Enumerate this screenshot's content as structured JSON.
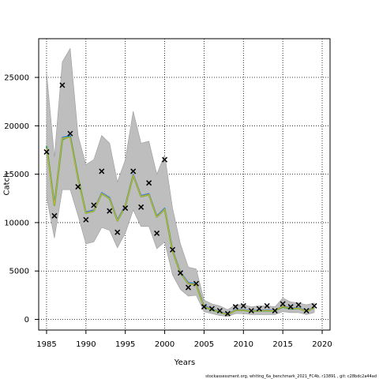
{
  "chart_data": {
    "type": "line",
    "xlabel": "Years",
    "ylabel": "Catch",
    "xlim": [
      1984,
      2021
    ],
    "ylim": [
      -1100,
      29000
    ],
    "x_ticks": [
      1985,
      1990,
      1995,
      2000,
      2005,
      2010,
      2015,
      2020
    ],
    "y_ticks": [
      0,
      5000,
      10000,
      15000,
      20000,
      25000
    ],
    "grid": true,
    "grid_style": "dotted",
    "years": [
      1985,
      1986,
      1987,
      1988,
      1989,
      1990,
      1991,
      1992,
      1993,
      1994,
      1995,
      1996,
      1997,
      1998,
      1999,
      2000,
      2001,
      2002,
      2003,
      2004,
      2005,
      2006,
      2007,
      2008,
      2009,
      2010,
      2011,
      2012,
      2013,
      2014,
      2015,
      2016,
      2017,
      2018,
      2019
    ],
    "observed": [
      17300,
      10700,
      24200,
      19200,
      13700,
      10300,
      11800,
      15300,
      11200,
      9000,
      11500,
      15300,
      11600,
      14100,
      8900,
      16500,
      7200,
      4800,
      3300,
      3700,
      1300,
      1100,
      900,
      600,
      1300,
      1400,
      900,
      1100,
      1400,
      900,
      1600,
      1300,
      1500,
      900,
      1400
    ],
    "band_upper": [
      25500,
      16800,
      26600,
      28000,
      19000,
      16000,
      16500,
      19000,
      18200,
      14200,
      16500,
      21500,
      18200,
      18400,
      15000,
      17000,
      11500,
      7800,
      5400,
      5200,
      2000,
      1600,
      1400,
      1000,
      1500,
      1500,
      1300,
      1400,
      1400,
      1300,
      2200,
      1800,
      1700,
      1500,
      1700
    ],
    "band_lower": [
      12600,
      8400,
      13400,
      13400,
      10700,
      7800,
      8000,
      9500,
      9200,
      7400,
      8900,
      11300,
      9600,
      9600,
      7300,
      8000,
      4600,
      3100,
      2400,
      2500,
      800,
      600,
      400,
      300,
      600,
      600,
      500,
      500,
      500,
      500,
      800,
      700,
      700,
      500,
      700
    ],
    "series": [
      {
        "name": "",
        "color": "#3fa94c",
        "values": [
          17900,
          11800,
          18600,
          18900,
          14600,
          11000,
          11200,
          13000,
          12500,
          10200,
          11700,
          14900,
          12700,
          12900,
          10600,
          11400,
          7100,
          4800,
          3700,
          3600,
          1300,
          1000,
          750,
          500,
          950,
          950,
          850,
          900,
          900,
          900,
          1300,
          1100,
          1150,
          850,
          1200
        ]
      },
      {
        "name": "",
        "color": "#2f7fd6",
        "values": [
          17800,
          11900,
          18800,
          19000,
          14400,
          11100,
          11300,
          13100,
          12600,
          10300,
          11800,
          15000,
          12800,
          13000,
          10700,
          11500,
          7200,
          4900,
          3800,
          3700,
          1400,
          1100,
          800,
          550,
          1000,
          1000,
          900,
          950,
          950,
          950,
          1400,
          1200,
          1200,
          900,
          1250
        ]
      },
      {
        "name": "",
        "color": "#c9b227",
        "values": [
          17700,
          11800,
          18700,
          18800,
          14500,
          11000,
          11200,
          13000,
          12500,
          10200,
          11700,
          14900,
          12700,
          12900,
          10600,
          11400,
          7100,
          4800,
          3700,
          3600,
          1300,
          1050,
          750,
          500,
          950,
          950,
          850,
          900,
          900,
          900,
          1350,
          1150,
          1150,
          850,
          1200
        ]
      }
    ],
    "band_color": "#bebebe",
    "marker": "×"
  },
  "footer": "stockassessment.org,  whiting_6a_benchmark_2021_FC4b, r13891 , git: c28bdc2a44ad"
}
